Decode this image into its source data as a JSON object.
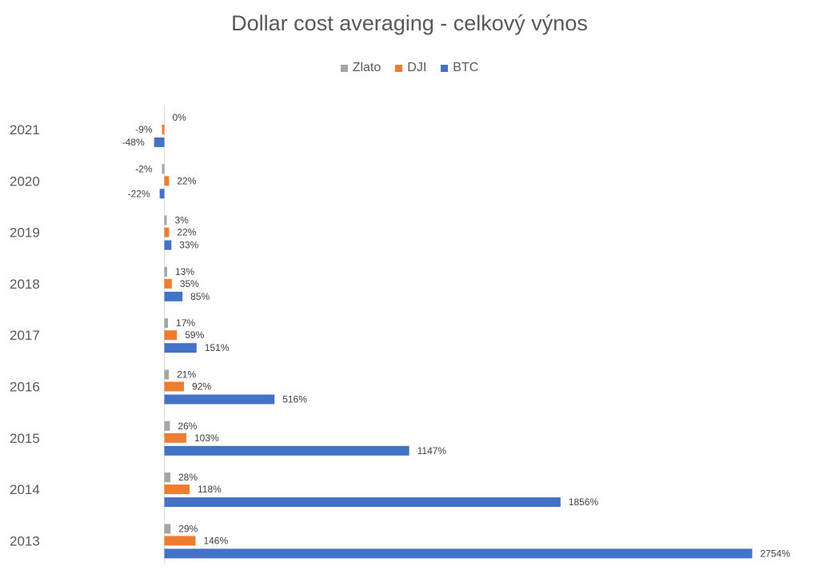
{
  "chart_data": {
    "type": "bar",
    "orientation": "horizontal",
    "title": "Dollar cost averaging - celkový výnos",
    "xlabel": "",
    "ylabel": "",
    "categories": [
      "2021",
      "2020",
      "2019",
      "2018",
      "2017",
      "2016",
      "2015",
      "2014",
      "2013"
    ],
    "series": [
      {
        "name": "Zlato",
        "color": "#a5a5a5",
        "values": [
          0,
          -2,
          3,
          13,
          17,
          21,
          26,
          28,
          29
        ],
        "labels": [
          "0%",
          "-2%",
          "3%",
          "13%",
          "17%",
          "21%",
          "26%",
          "28%",
          "29%"
        ]
      },
      {
        "name": "DJI",
        "color": "#ed7d31",
        "values": [
          -9,
          22,
          22,
          35,
          59,
          92,
          103,
          118,
          146
        ],
        "labels": [
          "-9%",
          "22%",
          "22%",
          "35%",
          "59%",
          "92%",
          "103%",
          "118%",
          "146%"
        ]
      },
      {
        "name": "BTC",
        "color": "#4472c4",
        "values": [
          -48,
          -22,
          33,
          85,
          151,
          516,
          1147,
          1856,
          2754
        ],
        "labels": [
          "-48%",
          "-22%",
          "33%",
          "85%",
          "151%",
          "516%",
          "1147%",
          "1856%",
          "2754%"
        ]
      }
    ],
    "legend_position": "top",
    "grid": false
  }
}
